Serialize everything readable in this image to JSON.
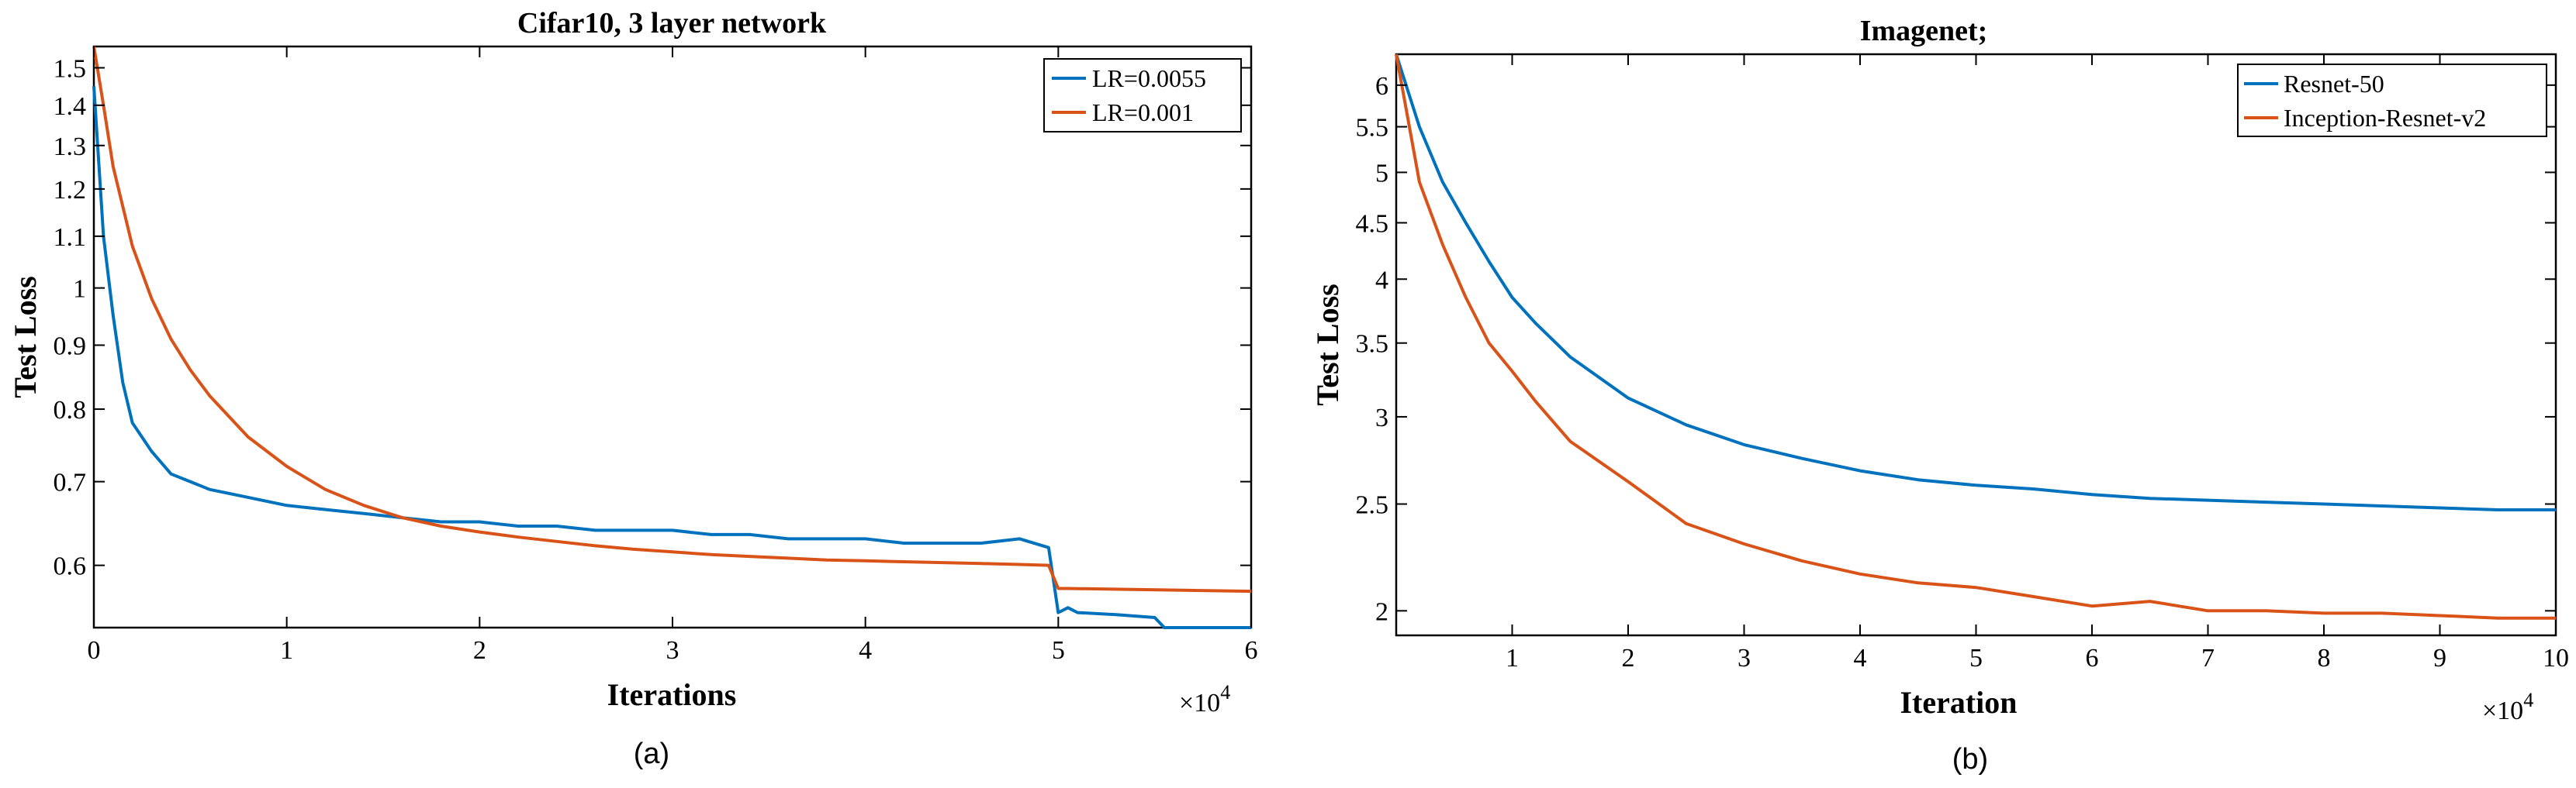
{
  "colors": {
    "blue": "#0072BD",
    "orange": "#D95319"
  },
  "chart_data": [
    {
      "type": "line",
      "panel_label": "(a)",
      "title": "Cifar10, 3 layer network",
      "xlabel": "Iterations",
      "ylabel": "Test Loss",
      "x_multiplier_base": "×10",
      "x_multiplier_exp": "4",
      "xlim": [
        0,
        6
      ],
      "ylim": [
        0.535,
        1.56
      ],
      "yscale": "log",
      "xticks": [
        0,
        1,
        2,
        3,
        4,
        5,
        6
      ],
      "xtick_labels": [
        "0",
        "1",
        "2",
        "3",
        "4",
        "5",
        "6"
      ],
      "yticks": [
        0.6,
        0.7,
        0.8,
        0.9,
        1,
        1.1,
        1.2,
        1.3,
        1.4,
        1.5
      ],
      "ytick_labels": [
        "0.6",
        "0.7",
        "0.8",
        "0.9",
        "1",
        "1.1",
        "1.2",
        "1.3",
        "1.4",
        "1.5"
      ],
      "legend_position": "top-right",
      "series": [
        {
          "name": "LR=0.0055",
          "color": "#0072BD",
          "x": [
            0,
            0.05,
            0.1,
            0.15,
            0.2,
            0.3,
            0.4,
            0.5,
            0.6,
            0.8,
            1.0,
            1.2,
            1.4,
            1.6,
            1.8,
            2.0,
            2.2,
            2.4,
            2.6,
            2.8,
            3.0,
            3.2,
            3.4,
            3.6,
            3.8,
            4.0,
            4.2,
            4.4,
            4.6,
            4.8,
            4.95,
            5.0,
            5.05,
            5.1,
            5.3,
            5.5,
            5.55,
            6.0
          ],
          "y": [
            1.45,
            1.1,
            0.95,
            0.84,
            0.78,
            0.74,
            0.71,
            0.7,
            0.69,
            0.68,
            0.67,
            0.665,
            0.66,
            0.655,
            0.65,
            0.65,
            0.645,
            0.645,
            0.64,
            0.64,
            0.64,
            0.635,
            0.635,
            0.63,
            0.63,
            0.63,
            0.625,
            0.625,
            0.625,
            0.63,
            0.62,
            0.55,
            0.555,
            0.55,
            0.548,
            0.545,
            0.535,
            0.535
          ]
        },
        {
          "name": "LR=0.001",
          "color": "#D95319",
          "x": [
            0,
            0.05,
            0.1,
            0.2,
            0.3,
            0.4,
            0.5,
            0.6,
            0.8,
            1.0,
            1.2,
            1.4,
            1.6,
            1.8,
            2.0,
            2.2,
            2.4,
            2.6,
            2.8,
            3.0,
            3.2,
            3.4,
            3.6,
            3.8,
            4.0,
            4.2,
            4.4,
            4.6,
            4.8,
            4.95,
            5.0,
            5.05,
            6.0
          ],
          "y": [
            1.56,
            1.4,
            1.25,
            1.08,
            0.98,
            0.91,
            0.86,
            0.82,
            0.76,
            0.72,
            0.69,
            0.67,
            0.655,
            0.645,
            0.638,
            0.632,
            0.627,
            0.622,
            0.618,
            0.615,
            0.612,
            0.61,
            0.608,
            0.606,
            0.605,
            0.604,
            0.603,
            0.602,
            0.601,
            0.6,
            0.575,
            0.575,
            0.572
          ]
        }
      ]
    },
    {
      "type": "line",
      "panel_label": "(b)",
      "title": "Imagenet;",
      "xlabel": "Iteration",
      "ylabel": "Test Loss",
      "x_multiplier_base": "×10",
      "x_multiplier_exp": "4",
      "xlim": [
        0,
        10
      ],
      "ylim": [
        1.9,
        6.4
      ],
      "yscale": "log",
      "xticks": [
        1,
        2,
        3,
        4,
        5,
        6,
        7,
        8,
        9,
        10
      ],
      "xtick_labels": [
        "1",
        "2",
        "3",
        "4",
        "5",
        "6",
        "7",
        "8",
        "9",
        "10"
      ],
      "yticks": [
        2,
        2.5,
        3,
        3.5,
        4,
        4.5,
        5,
        5.5,
        6
      ],
      "ytick_labels": [
        "2",
        "2.5",
        "3",
        "3.5",
        "4",
        "4.5",
        "5",
        "5.5",
        "6"
      ],
      "legend_position": "top-right",
      "series": [
        {
          "name": "Resnet-50",
          "color": "#0072BD",
          "x": [
            0,
            0.2,
            0.4,
            0.6,
            0.8,
            1.0,
            1.2,
            1.5,
            2.0,
            2.5,
            3.0,
            3.5,
            4.0,
            4.5,
            5.0,
            5.5,
            6.0,
            6.5,
            7.0,
            7.5,
            8.0,
            8.5,
            9.0,
            9.5,
            10.0
          ],
          "y": [
            6.4,
            5.5,
            4.9,
            4.5,
            4.15,
            3.85,
            3.65,
            3.4,
            3.12,
            2.95,
            2.83,
            2.75,
            2.68,
            2.63,
            2.6,
            2.58,
            2.55,
            2.53,
            2.52,
            2.51,
            2.5,
            2.49,
            2.48,
            2.47,
            2.47
          ]
        },
        {
          "name": "Inception-Resnet-v2",
          "color": "#D95319",
          "x": [
            0,
            0.2,
            0.4,
            0.6,
            0.8,
            1.0,
            1.2,
            1.5,
            2.0,
            2.5,
            3.0,
            3.5,
            4.0,
            4.5,
            5.0,
            5.5,
            6.0,
            6.5,
            7.0,
            7.5,
            8.0,
            8.5,
            9.0,
            9.5,
            10.0
          ],
          "y": [
            6.4,
            4.9,
            4.3,
            3.85,
            3.5,
            3.3,
            3.1,
            2.85,
            2.62,
            2.4,
            2.3,
            2.22,
            2.16,
            2.12,
            2.1,
            2.06,
            2.02,
            2.04,
            2.0,
            2.0,
            1.99,
            1.99,
            1.98,
            1.97,
            1.97
          ]
        }
      ]
    }
  ]
}
